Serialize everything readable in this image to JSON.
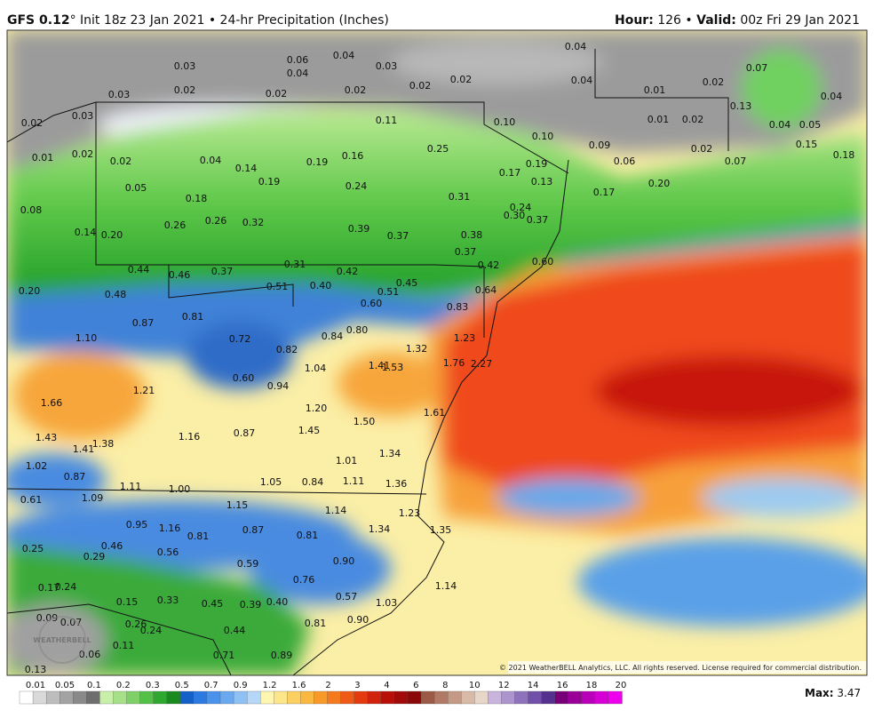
{
  "header": {
    "model": "GFS 0.12",
    "degree": "°",
    "init": " Init 18z 23 Jan 2021 • 24-hr Precipitation (Inches)",
    "hour_label": "Hour:",
    "hour": " 126 • ",
    "valid_label": "Valid:",
    "valid": " 00z Fri 29 Jan 2021"
  },
  "map": {
    "watermark": "WEATHERBELL",
    "copyright": "© 2021 WeatherBELL Analytics, LLC. All rights reserved. License required for commercial distribution.",
    "labels": [
      "0.03",
      "0.06",
      "0.04",
      "0.03",
      "0.04",
      "0.04",
      "0.04",
      "0.07",
      "0.03",
      "0.02",
      "0.02",
      "0.02",
      "0.02",
      "0.02",
      "0.01",
      "0.02",
      "0.04",
      "0.03",
      "0.02",
      "0.11",
      "0.10",
      "0.10",
      "0.01",
      "0.02",
      "0.13",
      "0.04",
      "0.05",
      "0.01",
      "0.02",
      "0.02",
      "0.04",
      "0.14",
      "0.19",
      "0.16",
      "0.25",
      "0.09",
      "0.06",
      "0.02",
      "0.07",
      "0.15",
      "0.18",
      "0.17",
      "0.19",
      "0.13",
      "0.17",
      "0.20",
      "0.05",
      "0.18",
      "0.19",
      "0.24",
      "0.31",
      "0.24",
      "0.30",
      "0.37",
      "0.08",
      "0.14",
      "0.20",
      "0.26",
      "0.26",
      "0.32",
      "0.39",
      "0.37",
      "0.38",
      "0.37",
      "0.42",
      "0.60",
      "0.31",
      "0.44",
      "0.46",
      "0.37",
      "0.42",
      "0.45",
      "0.20",
      "0.48",
      "0.51",
      "0.40",
      "0.51",
      "0.64",
      "0.60",
      "0.83",
      "0.81",
      "0.87",
      "0.80",
      "0.84",
      "1.10",
      "0.72",
      "0.82",
      "1.23",
      "1.32",
      "1.76",
      "2.27",
      "1.04",
      "1.41",
      "1.53",
      "0.60",
      "0.94",
      "1.21",
      "1.66",
      "1.20",
      "1.61",
      "1.50",
      "1.45",
      "0.87",
      "1.16",
      "1.43",
      "1.41",
      "1.38",
      "1.34",
      "1.01",
      "1.02",
      "0.87",
      "1.05",
      "0.84",
      "1.11",
      "1.36",
      "1.11",
      "1.00",
      "1.09",
      "0.61",
      "1.15",
      "1.14",
      "1.23",
      "0.95",
      "1.16",
      "0.87",
      "0.81",
      "1.34",
      "1.35",
      "0.81",
      "0.25",
      "0.46",
      "0.56",
      "0.29",
      "0.59",
      "0.90",
      "0.76",
      "0.17",
      "0.24",
      "1.14",
      "0.15",
      "0.33",
      "0.45",
      "0.39",
      "0.40",
      "0.57",
      "1.03",
      "0.09",
      "0.07",
      "0.26",
      "0.24",
      "0.44",
      "0.81",
      "0.90",
      "0.11",
      "0.06",
      "0.71",
      "0.89",
      "0.13"
    ]
  },
  "legend": {
    "ticks": [
      "0.01",
      "0.05",
      "0.1",
      "0.2",
      "0.3",
      "0.5",
      "0.7",
      "0.9",
      "1.2",
      "1.6",
      "2",
      "3",
      "4",
      "6",
      "8",
      "10",
      "12",
      "14",
      "16",
      "18",
      "20"
    ],
    "max_label": "Max:",
    "max": " 3.47"
  }
}
